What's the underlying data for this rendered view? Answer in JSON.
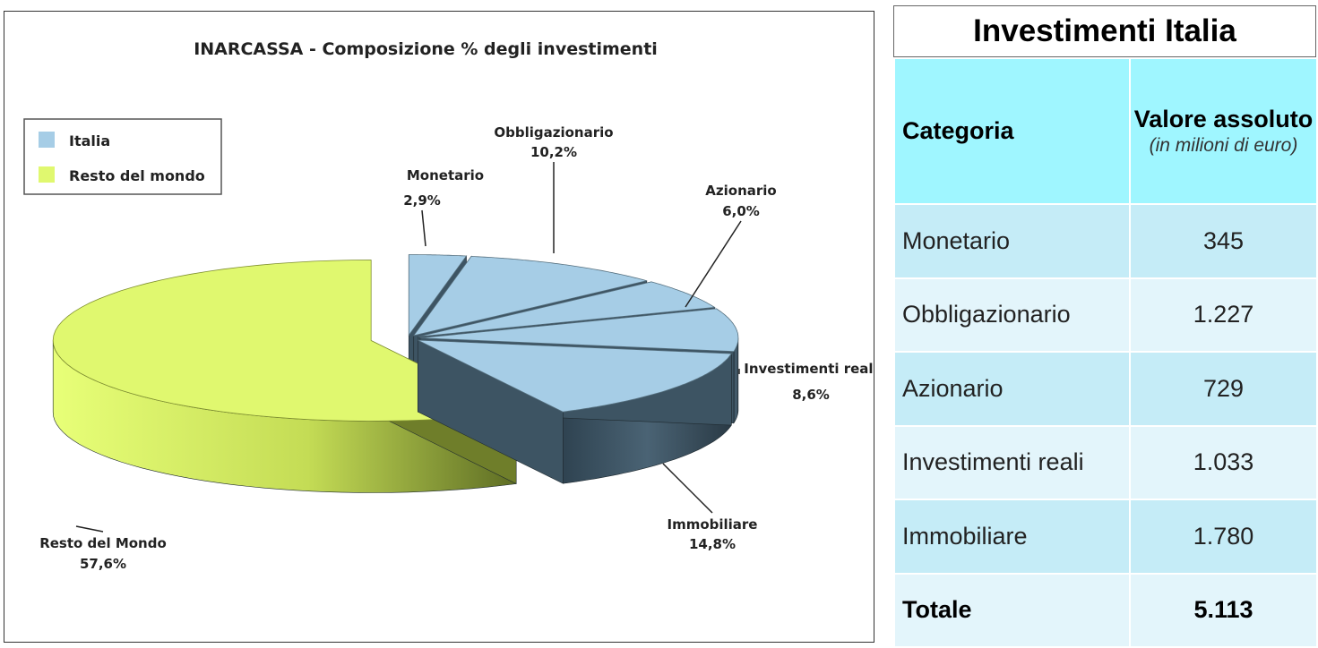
{
  "chart_data": {
    "type": "pie",
    "title": "INARCASSA - Composizione % degli investimenti",
    "legend": {
      "placement": "top-left",
      "entries": [
        {
          "label": "Italia",
          "color": "#a6cde6"
        },
        {
          "label": "Resto del mondo",
          "color": "#e0f86f"
        }
      ]
    },
    "slices": [
      {
        "label": "Monetario",
        "value": 2.9,
        "value_label": "2,9%",
        "group": "Italia"
      },
      {
        "label": "Obbligazionario",
        "value": 10.2,
        "value_label": "10,2%",
        "group": "Italia"
      },
      {
        "label": "Azionario",
        "value": 6.0,
        "value_label": "6,0%",
        "group": "Italia"
      },
      {
        "label": "Investimenti reali",
        "value": 8.6,
        "value_label": "8,6%",
        "group": "Italia"
      },
      {
        "label": "Immobiliare",
        "value": 14.8,
        "value_label": "14,8%",
        "group": "Italia"
      },
      {
        "label": "Resto del Mondo",
        "value": 57.6,
        "value_label": "57,6%",
        "group": "Resto del mondo"
      }
    ],
    "colors": {
      "italia": "#a6cde6",
      "italia_dark": "#3d5463",
      "resto": "#e0f86f",
      "resto_dark": "#6f7e2a"
    }
  },
  "table": {
    "title": "Investimenti Italia",
    "header": {
      "categoria": "Categoria",
      "valore": "Valore assoluto",
      "unit": "(in milioni di euro)"
    },
    "rows": [
      {
        "categoria": "Monetario",
        "valore": "345"
      },
      {
        "categoria": "Obbligazionario",
        "valore": "1.227"
      },
      {
        "categoria": "Azionario",
        "valore": "729"
      },
      {
        "categoria": "Investimenti reali",
        "valore": "1.033"
      },
      {
        "categoria": "Immobiliare",
        "valore": "1.780"
      }
    ],
    "total": {
      "categoria": "Totale",
      "valore": "5.113"
    },
    "colors": {
      "header_bg": "#9ff6ff",
      "row_odd": "#c5ecf7",
      "row_even": "#e3f5fb"
    }
  }
}
